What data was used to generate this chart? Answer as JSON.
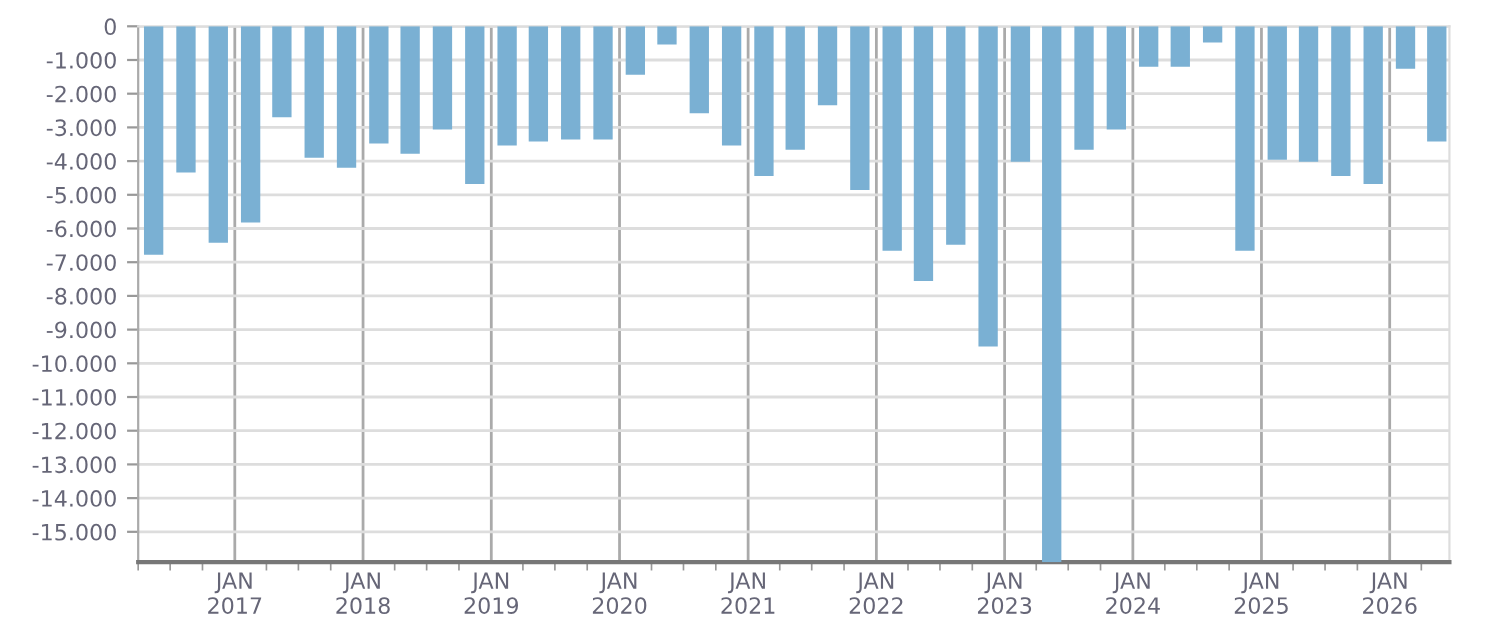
{
  "chart_data": {
    "type": "bar",
    "color": "#7ab0d3",
    "grid": true,
    "x": [
      "2016-05-15",
      "2016-08-15",
      "2016-11-15",
      "2017-02-15",
      "2017-05-15",
      "2017-08-15",
      "2017-11-15",
      "2018-02-15",
      "2018-05-15",
      "2018-08-15",
      "2018-11-15",
      "2019-02-15",
      "2019-05-15",
      "2019-08-15",
      "2019-11-15",
      "2020-02-15",
      "2020-05-15",
      "2020-08-15",
      "2020-11-15",
      "2021-02-15",
      "2021-05-15",
      "2021-08-15",
      "2021-11-15",
      "2022-02-15",
      "2022-05-15",
      "2022-08-15",
      "2022-11-15",
      "2023-02-15",
      "2023-05-15",
      "2023-08-15",
      "2023-11-15",
      "2024-02-15",
      "2024-05-15",
      "2024-08-15",
      "2024-11-15",
      "2025-02-15",
      "2025-05-15",
      "2025-08-15",
      "2025-11-15",
      "2026-02-15",
      "2026-05-15"
    ],
    "values": [
      -6780,
      -4340,
      -6420,
      -5820,
      -2700,
      -3900,
      -4200,
      -3480,
      -3780,
      -3060,
      -4680,
      -3540,
      -3420,
      -3360,
      -3360,
      -1440,
      -540,
      -2580,
      -3540,
      -4440,
      -3660,
      -2340,
      -4860,
      -6660,
      -7560,
      -6480,
      -9500,
      -4020,
      -15900,
      -3660,
      -3060,
      -1200,
      -1200,
      -480,
      -6660,
      -3960,
      -4020,
      -4440,
      -4680,
      -1260,
      -3420
    ],
    "xlim": [
      "2016-04-01",
      "2026-06-20"
    ],
    "xticks": [
      {
        "value": "2017-01-01",
        "label": "JAN\n2017"
      },
      {
        "value": "2018-01-01",
        "label": "JAN\n2018"
      },
      {
        "value": "2019-01-01",
        "label": "JAN\n2019"
      },
      {
        "value": "2020-01-01",
        "label": "JAN\n2020"
      },
      {
        "value": "2021-01-01",
        "label": "JAN\n2021"
      },
      {
        "value": "2022-01-01",
        "label": "JAN\n2022"
      },
      {
        "value": "2023-01-01",
        "label": "JAN\n2023"
      },
      {
        "value": "2024-01-01",
        "label": "JAN\n2024"
      },
      {
        "value": "2025-01-01",
        "label": "JAN\n2025"
      },
      {
        "value": "2026-01-01",
        "label": "JAN\n2026"
      }
    ],
    "ylim": [
      -15900,
      0
    ],
    "yticks": [
      0,
      {
        "value": -1000,
        "label": "-1.000"
      },
      {
        "value": -2000,
        "label": "-2.000"
      },
      {
        "value": -3000,
        "label": "-3.000"
      },
      {
        "value": -4000,
        "label": "-4.000"
      },
      {
        "value": -5000,
        "label": "-5.000"
      },
      {
        "value": -6000,
        "label": "-6.000"
      },
      {
        "value": -7000,
        "label": "-7.000"
      },
      {
        "value": -8000,
        "label": "-8.000"
      },
      {
        "value": -9000,
        "label": "-9.000"
      },
      {
        "value": -10000,
        "label": "-10.000"
      },
      {
        "value": -11000,
        "label": "-11.000"
      },
      {
        "value": -12000,
        "label": "-12.000"
      },
      {
        "value": -13000,
        "label": "-13.000"
      },
      {
        "value": -14000,
        "label": "-14.000"
      },
      {
        "value": -15000,
        "label": "-15.000"
      }
    ]
  }
}
